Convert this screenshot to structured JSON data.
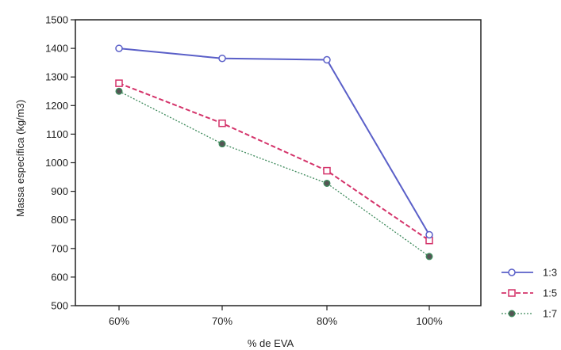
{
  "chart_data": {
    "type": "line",
    "title": "",
    "xlabel": "% de EVA",
    "ylabel": "Massa específica (kg/m3)",
    "categories": [
      "60%",
      "70%",
      "80%",
      "100%"
    ],
    "ylim": [
      500,
      1500
    ],
    "yticks": [
      500,
      600,
      700,
      800,
      900,
      1000,
      1100,
      1200,
      1300,
      1400,
      1500
    ],
    "grid": false,
    "legend_position": "bottom-right",
    "series": [
      {
        "name": "1:3",
        "values": [
          1400,
          1365,
          1360,
          748
        ],
        "color": "#5a5fc8",
        "marker": "circle-open",
        "dash": "solid"
      },
      {
        "name": "1:5",
        "values": [
          1278,
          1138,
          972,
          728
        ],
        "color": "#d4336a",
        "marker": "square-open",
        "dash": "dashed"
      },
      {
        "name": "1:7",
        "values": [
          1250,
          1066,
          928,
          672
        ],
        "color": "#3e8a5c",
        "marker": "circle-filled",
        "dash": "dotted"
      }
    ]
  }
}
